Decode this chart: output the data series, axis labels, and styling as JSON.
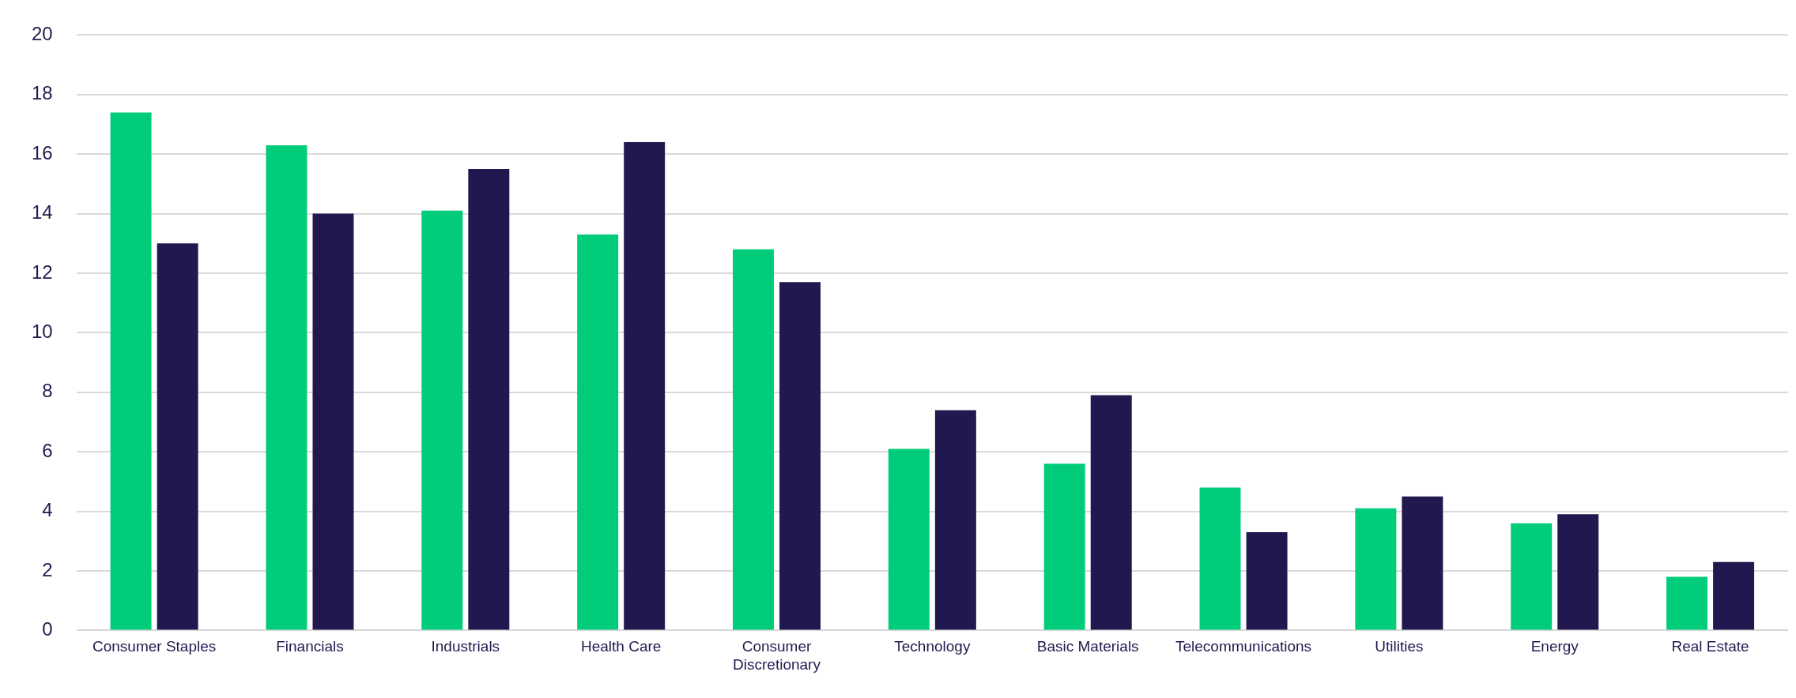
{
  "chart_data": {
    "type": "bar",
    "categories": [
      "Consumer Staples",
      "Financials",
      "Industrials",
      "Health Care",
      "Consumer Discretionary",
      "Technology",
      "Basic Materials",
      "Telecommunications",
      "Utilities",
      "Energy",
      "Real Estate"
    ],
    "series": [
      {
        "color": "#00cc7a",
        "values": [
          17.4,
          16.3,
          14.1,
          13.3,
          12.8,
          6.1,
          5.6,
          4.8,
          4.1,
          3.6,
          1.8
        ]
      },
      {
        "color": "#20184e",
        "values": [
          13.0,
          14.0,
          15.5,
          16.4,
          11.7,
          7.4,
          7.9,
          3.3,
          4.5,
          3.9,
          2.3
        ]
      }
    ],
    "ylim": [
      0,
      20
    ],
    "yticks": [
      0,
      2,
      4,
      6,
      8,
      10,
      12,
      14,
      16,
      18,
      20
    ],
    "grid": "y"
  }
}
